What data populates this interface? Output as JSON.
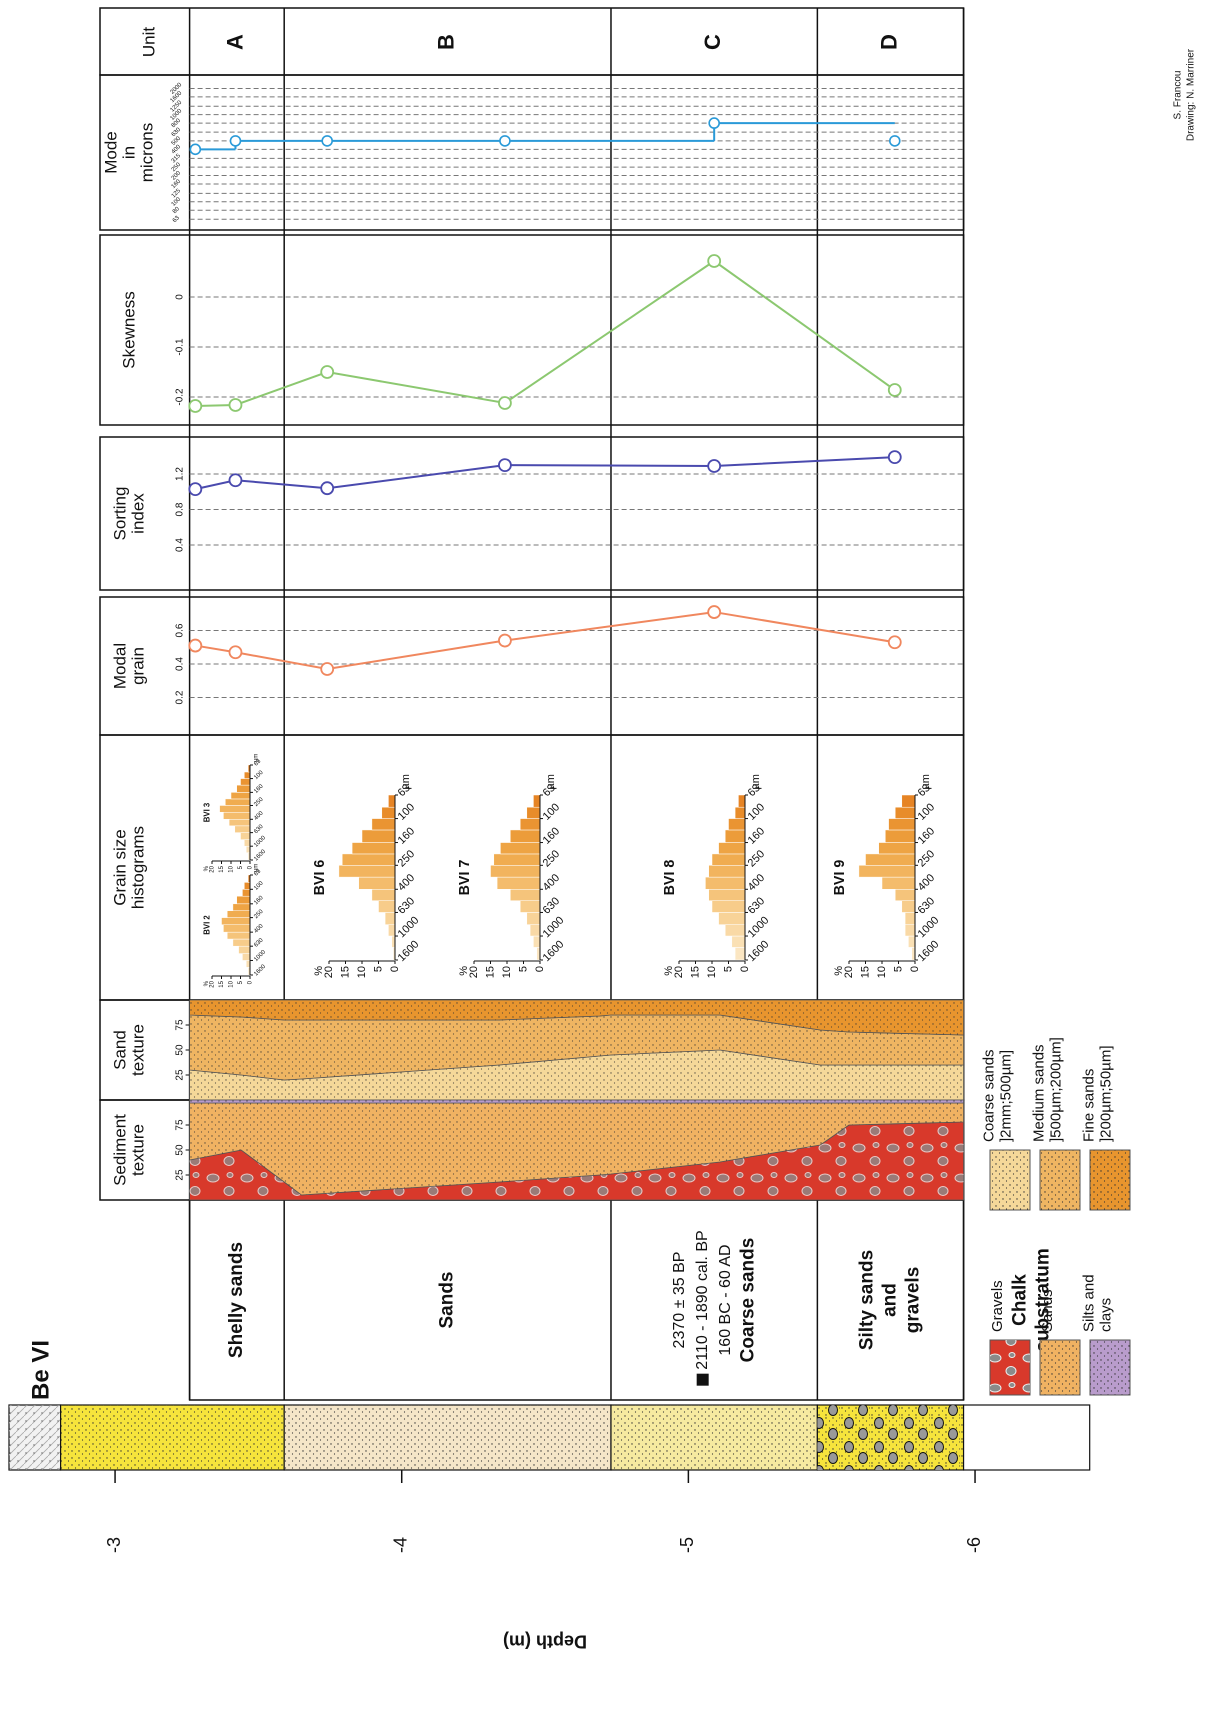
{
  "chart_data": {
    "type": "sediment-log",
    "title": "Be VI",
    "xlabel": "Depth (m)",
    "xlim": [
      -2.63,
      -6.4
    ],
    "xticks": [
      -3,
      -4,
      -5,
      -6
    ],
    "credits": [
      "S. Francou",
      "Drawing: N. Marriner"
    ],
    "units": {
      "title": "Unit",
      "labels": [
        "A",
        "B",
        "C",
        "D"
      ],
      "boundaries": [
        -3.26,
        -3.59,
        -4.73,
        -5.45,
        -5.96
      ]
    },
    "lithology": [
      {
        "lines": [
          "Shelly sands"
        ]
      },
      {
        "lines": [
          "Sands"
        ]
      },
      {
        "dates": [
          "2370 ± 35 BP",
          "2110 - 1890 cal. BP",
          "160 BC - 60 AD"
        ],
        "lines": [
          "Coarse sands"
        ]
      },
      {
        "lines": [
          "Silty sands",
          "and",
          "gravels"
        ]
      },
      {
        "lines": [
          "Chalk",
          "substratum"
        ]
      }
    ],
    "column": [
      {
        "from": -2.63,
        "to": -2.81,
        "fill": "#f2f2f2",
        "pattern": "shell"
      },
      {
        "from": -2.81,
        "to": -3.59,
        "fill": "#f6e43c",
        "pattern": "dots"
      },
      {
        "from": -3.59,
        "to": -4.73,
        "fill": "#f5e6c8",
        "pattern": "dots"
      },
      {
        "from": -4.73,
        "to": -5.45,
        "fill": "#f6eaa0",
        "pattern": "dots"
      },
      {
        "from": -5.45,
        "to": -5.96,
        "fill": "#f6e43c",
        "pattern": "pebbles"
      },
      {
        "from": -5.96,
        "to": -6.4,
        "fill": "#ffffff"
      }
    ],
    "sample_depths": [
      -3.28,
      -3.42,
      -3.74,
      -4.36,
      -5.09,
      -5.72
    ],
    "panels": [
      {
        "type": "step",
        "title": [
          "Mode",
          "in",
          "microns"
        ],
        "color": "#2a9ad8",
        "log": true,
        "ylim": [
          50,
          2500
        ],
        "yticks": [
          63,
          80,
          100,
          125,
          160,
          200,
          250,
          315,
          400,
          500,
          630,
          800,
          1000,
          1250,
          1600,
          2000
        ],
        "values": [
          400,
          500,
          500,
          500,
          800,
          500
        ]
      },
      {
        "type": "line",
        "title": [
          "Skewness"
        ],
        "color": "#8cc870",
        "ylim": [
          -0.25,
          0.12
        ],
        "yticks": [
          -0.2,
          -0.1,
          0
        ],
        "values": [
          -0.218,
          -0.216,
          -0.15,
          -0.212,
          0.072,
          -0.186
        ]
      },
      {
        "type": "line",
        "title": [
          "Sorting",
          "index"
        ],
        "color": "#4a4aae",
        "ylim": [
          0,
          1.6
        ],
        "yticks": [
          0.4,
          0.8,
          1.2
        ],
        "values": [
          1.03,
          1.13,
          1.04,
          1.3,
          1.29,
          1.39
        ]
      },
      {
        "type": "line",
        "title": [
          "Modal",
          "grain"
        ],
        "color": "#f0875e",
        "ylim": [
          0,
          0.8
        ],
        "yticks": [
          0.2,
          0.4,
          0.6
        ],
        "values": [
          0.51,
          0.47,
          0.37,
          0.54,
          0.71,
          0.53
        ]
      },
      {
        "type": "histograms",
        "title": [
          "Grain size",
          "histograms"
        ],
        "bins": [
          1600,
          1250,
          1000,
          800,
          630,
          500,
          400,
          315,
          250,
          200,
          160,
          125,
          100,
          80,
          63
        ],
        "bin_ticks": [
          1600,
          1000,
          630,
          400,
          250,
          160,
          100,
          63
        ],
        "bin_label": "µm",
        "value_label": "%",
        "xlim": [
          0,
          20
        ],
        "xticks": [
          0,
          5,
          10,
          15,
          20
        ],
        "colors": [
          "#fbe6c2",
          "#fae0b4",
          "#f9d9a6",
          "#f8d398",
          "#f7cc8a",
          "#f5c47b",
          "#f4bc6c",
          "#f2b45e",
          "#f0ac50",
          "#eea444",
          "#ec9c3a",
          "#ea9432",
          "#e88c2a",
          "#e68424"
        ],
        "histograms": [
          {
            "name": "BVI 2",
            "values": [
              1,
              2,
              4,
              6,
              9,
              12,
              14,
              15,
              12,
              9,
              7,
              4,
              3,
              1
            ]
          },
          {
            "name": "BVI 3",
            "values": [
              1,
              2,
              3,
              5,
              8,
              11,
              14,
              16,
              13,
              10,
              7,
              5,
              3,
              1
            ]
          },
          {
            "name": "BVI 6",
            "values": [
              0.5,
              1,
              2,
              3,
              5,
              7,
              11,
              17,
              16,
              13,
              10,
              7,
              4,
              2
            ]
          },
          {
            "name": "BVI 7",
            "values": [
              1,
              2,
              3,
              4,
              6,
              9,
              13,
              15,
              14,
              12,
              9,
              6,
              4,
              2
            ]
          },
          {
            "name": "BVI 8",
            "values": [
              3,
              4,
              6,
              8,
              10,
              11,
              12,
              11,
              10,
              8,
              6,
              5,
              3,
              2
            ]
          },
          {
            "name": "BVI 9",
            "values": [
              1,
              2,
              3,
              3,
              4,
              6,
              10,
              17,
              15,
              11,
              9,
              8,
              6,
              4
            ]
          }
        ]
      },
      {
        "type": "texture",
        "title": [
          "Sand",
          "texture"
        ],
        "ylim": [
          0,
          100
        ],
        "yticks": [
          25,
          50,
          75
        ],
        "depths": [
          -3.26,
          -3.44,
          -3.59,
          -3.65,
          -4.34,
          -4.69,
          -4.73,
          -5.11,
          -5.46,
          -5.56,
          -5.96
        ],
        "series": [
          {
            "legend": [
              "Coarse sands",
              "]2mm;500µm]"
            ],
            "color": "#f5d899",
            "values": [
              30,
              25,
              20,
              21,
              35,
              44,
              45,
              50,
              35,
              35,
              35
            ]
          },
          {
            "legend": [
              "Medium sands",
              "]500µm;200µm]"
            ],
            "color": "#efb562",
            "values": [
              55,
              58,
              60,
              59,
              45,
              40,
              40,
              35,
              35,
              33,
              30
            ]
          },
          {
            "legend": [
              "Fine sands",
              "]200µm;50µm]"
            ],
            "color": "#e8952e",
            "values": [
              15,
              17,
              20,
              20,
              20,
              16,
              15,
              15,
              30,
              32,
              35
            ]
          }
        ]
      },
      {
        "type": "texture",
        "title": [
          "Sediment",
          "texture"
        ],
        "ylim": [
          0,
          100
        ],
        "yticks": [
          25,
          50,
          75
        ],
        "depths": [
          -3.26,
          -3.44,
          -3.59,
          -3.65,
          -4.34,
          -4.69,
          -4.73,
          -5.11,
          -5.46,
          -5.56,
          -5.96
        ],
        "series": [
          {
            "legend": [
              "Gravels"
            ],
            "color": "#d8392b",
            "pattern": "gravel",
            "values": [
              40,
              50,
              18,
              5,
              18,
              25,
              26,
              38,
              55,
              75,
              78
            ]
          },
          {
            "legend": [
              "Sands"
            ],
            "color": "#f0b262",
            "pattern": "dots",
            "values": [
              57,
              47,
              79,
              92,
              79,
              72,
              71,
              59,
              42,
              22,
              19
            ]
          },
          {
            "legend": [
              "Silts and",
              "clays"
            ],
            "color": "#b99ccc",
            "values": [
              3,
              3,
              3,
              3,
              3,
              3,
              3,
              3,
              3,
              3,
              3
            ]
          }
        ]
      }
    ]
  }
}
